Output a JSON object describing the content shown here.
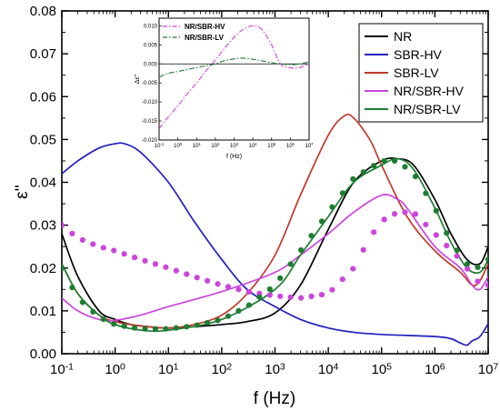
{
  "chart_data": {
    "type": "line",
    "xlabel": "f (Hz)",
    "ylabel": "ε''",
    "xscale": "log",
    "xlim": [
      0.1,
      10000000
    ],
    "ylim": [
      0,
      0.08
    ],
    "grid": false,
    "legend_position": "top-right",
    "x_ticks": [
      {
        "value": 0.1,
        "base": "10",
        "exp": "-1"
      },
      {
        "value": 1,
        "base": "10",
        "exp": "0"
      },
      {
        "value": 10,
        "base": "10",
        "exp": "1"
      },
      {
        "value": 100,
        "base": "10",
        "exp": "2"
      },
      {
        "value": 1000,
        "base": "10",
        "exp": "3"
      },
      {
        "value": 10000,
        "base": "10",
        "exp": "4"
      },
      {
        "value": 100000,
        "base": "10",
        "exp": "5"
      },
      {
        "value": 1000000,
        "base": "10",
        "exp": "6"
      },
      {
        "value": 10000000,
        "base": "10",
        "exp": "7"
      }
    ],
    "y_ticks": [
      "0.00",
      "0.01",
      "0.02",
      "0.03",
      "0.04",
      "0.05",
      "0.06",
      "0.07",
      "0.08"
    ],
    "series": [
      {
        "name": "NR",
        "color": "#000000",
        "style": "line",
        "x": [
          0.1,
          0.2,
          0.5,
          1,
          2,
          5,
          10,
          30,
          100,
          300,
          1000,
          3000,
          10000,
          30000,
          100000,
          200000,
          400000,
          1000000,
          2000000,
          4000000,
          7000000,
          10000000
        ],
        "y": [
          0.028,
          0.018,
          0.01,
          0.008,
          0.0068,
          0.0062,
          0.006,
          0.0063,
          0.0068,
          0.0075,
          0.0095,
          0.016,
          0.029,
          0.04,
          0.045,
          0.0455,
          0.044,
          0.036,
          0.028,
          0.022,
          0.021,
          0.025
        ]
      },
      {
        "name": "SBR-HV",
        "color": "#1f1fbf",
        "style": "line",
        "x": [
          0.1,
          0.2,
          0.5,
          1,
          1.5,
          3,
          10,
          30,
          100,
          300,
          1000,
          3000,
          10000,
          30000,
          100000,
          1000000,
          2000000,
          3000000,
          4000000,
          5000000,
          7000000,
          10000000
        ],
        "y": [
          0.042,
          0.045,
          0.048,
          0.049,
          0.049,
          0.047,
          0.04,
          0.031,
          0.022,
          0.015,
          0.011,
          0.008,
          0.006,
          0.005,
          0.0045,
          0.004,
          0.0035,
          0.0025,
          0.002,
          0.003,
          0.004,
          0.007
        ]
      },
      {
        "name": "SBR-LV",
        "color": "#c0392b",
        "style": "line",
        "x": [
          0.1,
          0.2,
          0.5,
          1,
          3,
          10,
          30,
          100,
          300,
          1000,
          3000,
          10000,
          20000,
          30000,
          60000,
          100000,
          300000,
          1000000,
          3000000,
          5000000,
          7000000,
          10000000
        ],
        "y": [
          0.021,
          0.014,
          0.009,
          0.0075,
          0.0065,
          0.006,
          0.0068,
          0.009,
          0.014,
          0.023,
          0.037,
          0.051,
          0.0555,
          0.055,
          0.05,
          0.044,
          0.032,
          0.024,
          0.019,
          0.016,
          0.017,
          0.021
        ]
      },
      {
        "name": "NR/SBR-HV",
        "color": "#cc44dd",
        "style": "line",
        "x": [
          0.1,
          0.2,
          0.5,
          1,
          3,
          10,
          100,
          1000,
          3000,
          10000,
          30000,
          100000,
          200000,
          300000,
          1000000,
          3000000,
          5000000,
          7000000,
          10000000
        ],
        "y": [
          0.013,
          0.01,
          0.008,
          0.0078,
          0.009,
          0.011,
          0.0145,
          0.019,
          0.023,
          0.028,
          0.033,
          0.037,
          0.036,
          0.034,
          0.025,
          0.02,
          0.016,
          0.015,
          0.018
        ]
      },
      {
        "name": "NR/SBR-LV",
        "color": "#1e7d32",
        "style": "line",
        "x": [
          0.1,
          0.2,
          0.5,
          1,
          3,
          10,
          100,
          1000,
          3000,
          10000,
          30000,
          100000,
          200000,
          400000,
          1000000,
          2000000,
          4000000,
          7000000,
          10000000
        ],
        "y": [
          0.021,
          0.014,
          0.009,
          0.0068,
          0.0055,
          0.0055,
          0.008,
          0.015,
          0.023,
          0.032,
          0.04,
          0.044,
          0.0455,
          0.043,
          0.034,
          0.026,
          0.02,
          0.019,
          0.022
        ]
      },
      {
        "name": "",
        "color": "#cc44dd",
        "style": "dots",
        "x": [
          0.1,
          0.2,
          0.5,
          1,
          3,
          10,
          30,
          100,
          300,
          1000,
          3000,
          10000,
          30000,
          60000,
          100000,
          200000,
          400000,
          1000000,
          3000000,
          6000000,
          10000000
        ],
        "y": [
          0.03,
          0.027,
          0.025,
          0.024,
          0.022,
          0.02,
          0.018,
          0.016,
          0.0145,
          0.0135,
          0.013,
          0.014,
          0.02,
          0.027,
          0.031,
          0.033,
          0.033,
          0.028,
          0.022,
          0.017,
          0.016
        ]
      },
      {
        "name": "",
        "color": "#1e7d32",
        "style": "dots",
        "x": [
          0.1,
          0.2,
          0.5,
          1,
          3,
          10,
          30,
          100,
          300,
          1000,
          3000,
          10000,
          30000,
          100000,
          200000,
          400000,
          1000000,
          2000000,
          4000000,
          7000000,
          10000000
        ],
        "y": [
          0.02,
          0.013,
          0.0085,
          0.0068,
          0.0058,
          0.0058,
          0.0065,
          0.008,
          0.011,
          0.016,
          0.024,
          0.033,
          0.041,
          0.045,
          0.045,
          0.042,
          0.034,
          0.026,
          0.021,
          0.02,
          0.022
        ]
      }
    ],
    "inset": {
      "xlabel": "f (Hz)",
      "ylabel": "Δε''",
      "xlim": [
        0.1,
        10000000
      ],
      "ylim": [
        -0.02,
        0.012
      ],
      "x_ticks": [
        {
          "value": 0.1,
          "base": "10",
          "exp": "-1"
        },
        {
          "value": 1,
          "base": "10",
          "exp": "0"
        },
        {
          "value": 10,
          "base": "10",
          "exp": "1"
        },
        {
          "value": 100,
          "base": "10",
          "exp": "2"
        },
        {
          "value": 1000,
          "base": "10",
          "exp": "3"
        },
        {
          "value": 10000,
          "base": "10",
          "exp": "4"
        },
        {
          "value": 100000,
          "base": "10",
          "exp": "5"
        },
        {
          "value": 1000000,
          "base": "10",
          "exp": "6"
        },
        {
          "value": 10000000,
          "base": "10",
          "exp": "7"
        }
      ],
      "y_ticks": [
        "0.010",
        "0.005",
        "0.000",
        "-0.005",
        "-0.010",
        "-0.015",
        "-0.020"
      ],
      "y_tick_values": [
        0.01,
        0.005,
        0,
        -0.005,
        -0.01,
        -0.015,
        -0.02
      ],
      "series": [
        {
          "name": "NR/SBR-HV",
          "color": "#cc44dd",
          "style": "dashdot",
          "x": [
            0.1,
            0.3,
            1,
            3,
            10,
            30,
            100,
            300,
            1000,
            3000,
            10000,
            30000,
            100000,
            300000,
            1000000,
            3000000,
            10000000
          ],
          "y": [
            -0.017,
            -0.014,
            -0.011,
            -0.008,
            -0.005,
            -0.002,
            0.001,
            0.004,
            0.007,
            0.009,
            0.01,
            0.009,
            0.005,
            0.0,
            -0.001,
            -0.001,
            0.0
          ]
        },
        {
          "name": "NR/SBR-LV",
          "color": "#1e7d32",
          "style": "dashdot",
          "x": [
            0.1,
            0.3,
            1,
            3,
            10,
            30,
            100,
            300,
            1000,
            3000,
            10000,
            30000,
            100000,
            300000,
            1000000,
            3000000,
            10000000
          ],
          "y": [
            -0.0035,
            -0.0025,
            -0.002,
            -0.0015,
            -0.001,
            -0.0005,
            0.0,
            0.0008,
            0.0013,
            0.0015,
            0.0012,
            0.0008,
            0.0003,
            0.0,
            -0.0002,
            0.0,
            0.0005
          ]
        }
      ]
    }
  }
}
